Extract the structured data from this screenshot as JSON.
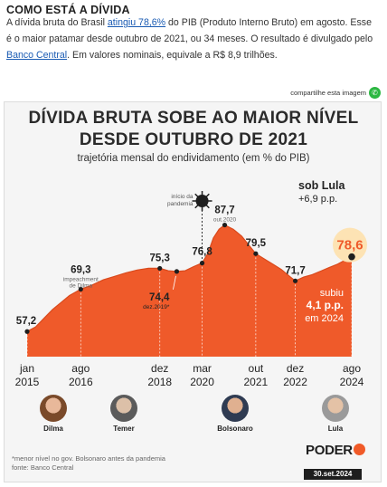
{
  "section_title": "COMO ESTÁ A DÍVIDA",
  "intro": {
    "p1": "A dívida bruta do Brasil ",
    "link1": "atingiu 78,6%",
    "p2": " do PIB (Produto Interno Bruto) em agosto. Esse é o maior patamar desde outubro de 2021, ou 34 meses. O resultado é divulgado pelo ",
    "link2": "Banco Central",
    "p3": ". Em valores nominais, equivale a R$ 8,9 trilhões."
  },
  "share_label": "compartilhe esta imagem",
  "chart_data": {
    "type": "area",
    "title_line1": "DÍVIDA BRUTA SOBE AO MAIOR NÍVEL",
    "title_line2": "DESDE OUTUBRO DE 2021",
    "subtitle": "trajetória mensal do endividamento (em % do PIB)",
    "x_ticks": [
      {
        "month": "jan",
        "year": "2015",
        "t": 0
      },
      {
        "month": "ago",
        "year": "2016",
        "t": 19
      },
      {
        "month": "dez",
        "year": "2018",
        "t": 47
      },
      {
        "month": "mar",
        "year": "2020",
        "t": 62
      },
      {
        "month": "out",
        "year": "2021",
        "t": 81
      },
      {
        "month": "dez",
        "year": "2022",
        "t": 95
      },
      {
        "month": "ago",
        "year": "2024",
        "t": 115
      }
    ],
    "ylim": [
      50,
      92
    ],
    "series": [
      {
        "points": [
          [
            0,
            57.2
          ],
          [
            3,
            58.5
          ],
          [
            6,
            61.0
          ],
          [
            9,
            63.5
          ],
          [
            12,
            65.5
          ],
          [
            15,
            67.5
          ],
          [
            19,
            69.3
          ],
          [
            23,
            70.5
          ],
          [
            27,
            72.0
          ],
          [
            31,
            73.0
          ],
          [
            35,
            74.0
          ],
          [
            39,
            74.8
          ],
          [
            43,
            75.3
          ],
          [
            47,
            75.3
          ],
          [
            50,
            74.6
          ],
          [
            53,
            74.4
          ],
          [
            56,
            74.6
          ],
          [
            59,
            75.8
          ],
          [
            62,
            76.8
          ],
          [
            64,
            79.5
          ],
          [
            66,
            84.0
          ],
          [
            68,
            86.5
          ],
          [
            70,
            87.7
          ],
          [
            73,
            86.5
          ],
          [
            76,
            84.5
          ],
          [
            79,
            81.5
          ],
          [
            81,
            79.5
          ],
          [
            84,
            78.0
          ],
          [
            87,
            76.5
          ],
          [
            90,
            75.0
          ],
          [
            93,
            73.0
          ],
          [
            95,
            71.7
          ],
          [
            98,
            72.8
          ],
          [
            101,
            73.5
          ],
          [
            104,
            74.5
          ],
          [
            107,
            75.5
          ],
          [
            110,
            76.5
          ],
          [
            113,
            77.8
          ],
          [
            115,
            78.6
          ]
        ]
      }
    ],
    "labels": [
      {
        "t": 0,
        "v": 57.2,
        "text": "57,2",
        "note": ""
      },
      {
        "t": 19,
        "v": 69.3,
        "text": "69,3",
        "note": "impeachment de Dilma"
      },
      {
        "t": 47,
        "v": 75.3,
        "text": "75,3",
        "note": ""
      },
      {
        "t": 53,
        "v": 74.4,
        "text": "74,4",
        "note": "dez.2019*"
      },
      {
        "t": 62,
        "v": 76.8,
        "text": "76,8",
        "note": ""
      },
      {
        "t": 70,
        "v": 87.7,
        "text": "87,7",
        "note": "out.2020"
      },
      {
        "t": 81,
        "v": 79.5,
        "text": "79,5",
        "note": ""
      },
      {
        "t": 95,
        "v": 71.7,
        "text": "71,7",
        "note": ""
      },
      {
        "t": 115,
        "v": 78.6,
        "text": "78,6",
        "note": ""
      }
    ],
    "pandemic_note": "início da pandemia",
    "lula_box": {
      "title": "sob Lula",
      "delta": "+6,9 p.p."
    },
    "subiu": {
      "l1": "subiu",
      "l2": "4,1 p.p.",
      "l3": "em 2024"
    }
  },
  "colors": {
    "area": "#ef5a2a",
    "highlight_circle": "#fde3b4",
    "marker": "#1e1e1e"
  },
  "presidents": [
    {
      "name": "Dilma",
      "icon": "dilma-portrait"
    },
    {
      "name": "Temer",
      "icon": "temer-portrait"
    },
    {
      "name": "Bolsonaro",
      "icon": "bolsonaro-portrait"
    },
    {
      "name": "Lula",
      "icon": "lula-portrait"
    }
  ],
  "footnote": {
    "line1": "*menor nível no gov. Bolsonaro antes da pandemia",
    "line2": "fonte: Banco Central"
  },
  "brand": {
    "name": "PODER",
    "sub": "360",
    "date": "30.set.2024"
  }
}
